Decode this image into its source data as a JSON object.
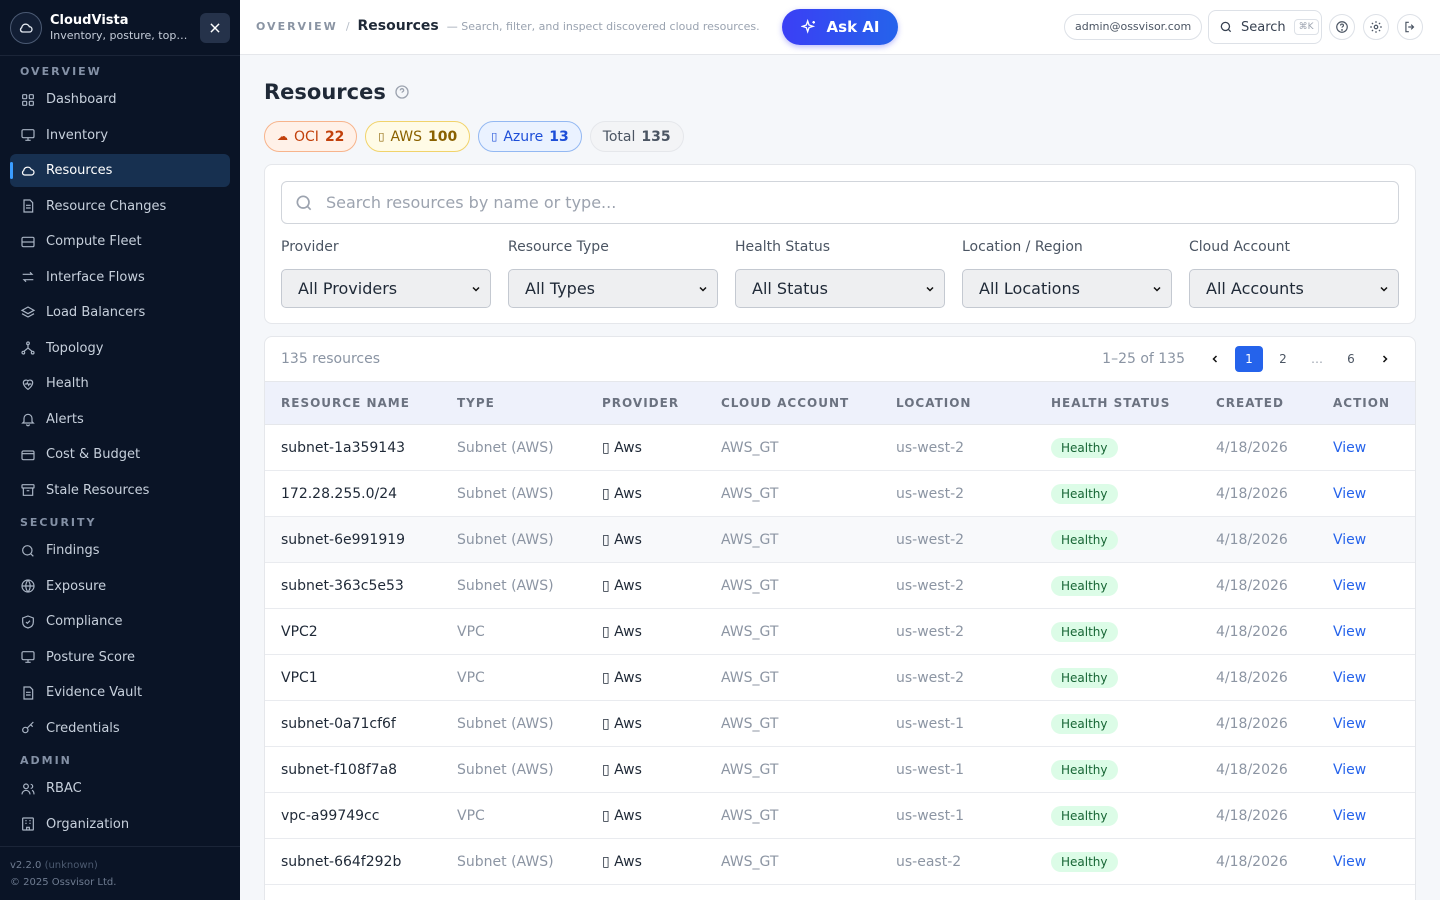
{
  "brand": {
    "name": "CloudVista",
    "subtitle": "Inventory, posture, topology"
  },
  "sidebar": {
    "sections": {
      "overview": "OVERVIEW",
      "security": "SECURITY",
      "admin": "ADMIN"
    },
    "overview_items": [
      {
        "label": "Dashboard",
        "icon": "dashboard-icon"
      },
      {
        "label": "Inventory",
        "icon": "monitor-icon"
      },
      {
        "label": "Resources",
        "icon": "cloud-icon",
        "active": true
      },
      {
        "label": "Resource Changes",
        "icon": "document-icon"
      },
      {
        "label": "Compute Fleet",
        "icon": "server-icon"
      },
      {
        "label": "Interface Flows",
        "icon": "flow-icon"
      },
      {
        "label": "Load Balancers",
        "icon": "layers-icon"
      },
      {
        "label": "Topology",
        "icon": "topology-icon"
      },
      {
        "label": "Health",
        "icon": "heart-icon"
      },
      {
        "label": "Alerts",
        "icon": "bell-icon"
      },
      {
        "label": "Cost & Budget",
        "icon": "wallet-icon"
      },
      {
        "label": "Stale Resources",
        "icon": "archive-icon"
      }
    ],
    "security_items": [
      {
        "label": "Findings",
        "icon": "search-icon"
      },
      {
        "label": "Exposure",
        "icon": "globe-icon"
      },
      {
        "label": "Compliance",
        "icon": "shield-icon"
      },
      {
        "label": "Posture Score",
        "icon": "monitor-icon"
      },
      {
        "label": "Evidence Vault",
        "icon": "document-icon"
      },
      {
        "label": "Credentials",
        "icon": "key-icon"
      }
    ],
    "admin_items": [
      {
        "label": "RBAC",
        "icon": "users-icon"
      },
      {
        "label": "Organization",
        "icon": "building-icon"
      }
    ],
    "version": "v2.2.0",
    "version_note": "(unknown)",
    "copyright": "© 2025 Ossvisor Ltd."
  },
  "topbar": {
    "crumb_root": "OVERVIEW",
    "crumb_sep": "/",
    "crumb_page": "Resources",
    "crumb_desc": "— Search, filter, and inspect discovered cloud resources.",
    "ask_ai": "Ask AI",
    "user": "admin@ossvisor.com",
    "search": "Search",
    "shortcut": "⌘K"
  },
  "page": {
    "title": "Resources",
    "chips": {
      "oci_label": "OCI",
      "oci_count": "22",
      "aws_label": "AWS",
      "aws_count": "100",
      "azure_label": "Azure",
      "azure_count": "13",
      "total_label": "Total",
      "total_count": "135"
    }
  },
  "filters": {
    "search_placeholder": "Search resources by name or type...",
    "provider": {
      "label": "Provider",
      "value": "All Providers"
    },
    "type": {
      "label": "Resource Type",
      "value": "All Types"
    },
    "health": {
      "label": "Health Status",
      "value": "All Status"
    },
    "location": {
      "label": "Location / Region",
      "value": "All Locations"
    },
    "account": {
      "label": "Cloud Account",
      "value": "All Accounts"
    }
  },
  "table": {
    "count": "135 resources",
    "range": "1–25 of 135",
    "pages": [
      "1",
      "2",
      "…",
      "6"
    ],
    "columns": [
      "RESOURCE NAME",
      "TYPE",
      "PROVIDER",
      "CLOUD ACCOUNT",
      "LOCATION",
      "HEALTH STATUS",
      "CREATED",
      "ACTION"
    ],
    "rows": [
      [
        "subnet-1a359143",
        "Subnet (AWS)",
        "Aws",
        "AWS_GT",
        "us-west-2",
        "Healthy",
        "4/18/2026",
        "View"
      ],
      [
        "172.28.255.0/24",
        "Subnet (AWS)",
        "Aws",
        "AWS_GT",
        "us-west-2",
        "Healthy",
        "4/18/2026",
        "View"
      ],
      [
        "subnet-6e991919",
        "Subnet (AWS)",
        "Aws",
        "AWS_GT",
        "us-west-2",
        "Healthy",
        "4/18/2026",
        "View"
      ],
      [
        "subnet-363c5e53",
        "Subnet (AWS)",
        "Aws",
        "AWS_GT",
        "us-west-2",
        "Healthy",
        "4/18/2026",
        "View"
      ],
      [
        "VPC2",
        "VPC",
        "Aws",
        "AWS_GT",
        "us-west-2",
        "Healthy",
        "4/18/2026",
        "View"
      ],
      [
        "VPC1",
        "VPC",
        "Aws",
        "AWS_GT",
        "us-west-2",
        "Healthy",
        "4/18/2026",
        "View"
      ],
      [
        "subnet-0a71cf6f",
        "Subnet (AWS)",
        "Aws",
        "AWS_GT",
        "us-west-1",
        "Healthy",
        "4/18/2026",
        "View"
      ],
      [
        "subnet-f108f7a8",
        "Subnet (AWS)",
        "Aws",
        "AWS_GT",
        "us-west-1",
        "Healthy",
        "4/18/2026",
        "View"
      ],
      [
        "vpc-a99749cc",
        "VPC",
        "Aws",
        "AWS_GT",
        "us-west-1",
        "Healthy",
        "4/18/2026",
        "View"
      ],
      [
        "subnet-664f292b",
        "Subnet (AWS)",
        "Aws",
        "AWS_GT",
        "us-east-2",
        "Healthy",
        "4/18/2026",
        "View"
      ]
    ]
  }
}
